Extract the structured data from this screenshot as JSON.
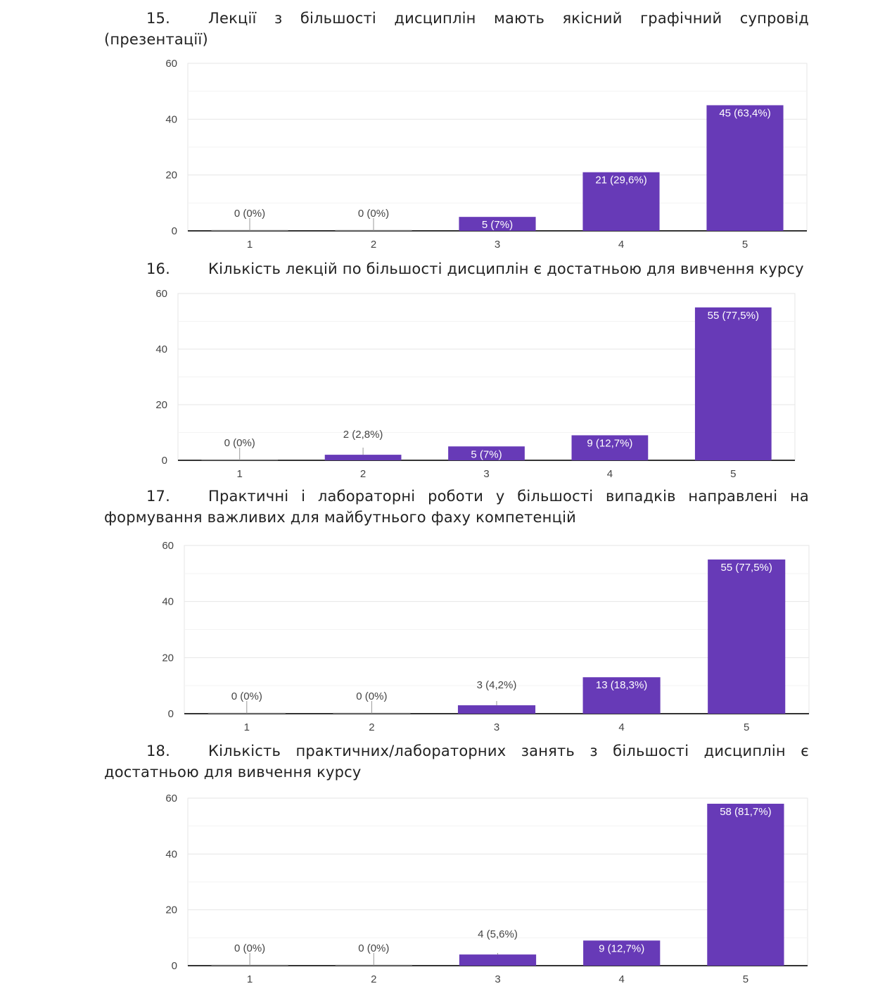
{
  "bar_color": "#673ab7",
  "chart_data": [
    {
      "type": "bar",
      "number": "15.",
      "title": "Лекції з більшості дисциплін мають якісний графічний супровід (презентації)",
      "categories": [
        "1",
        "2",
        "3",
        "4",
        "5"
      ],
      "values": [
        0,
        0,
        5,
        21,
        45
      ],
      "data_labels": [
        "0 (0%)",
        "0 (0%)",
        "5 (7%)",
        "21 (29,6%)",
        "45 (63,4%)"
      ],
      "yticks": [
        "0",
        "20",
        "40",
        "60"
      ],
      "ylim": [
        0,
        60
      ],
      "grid": true
    },
    {
      "type": "bar",
      "number": "16.",
      "title": "Кількість лекцій по більшості дисциплін є достатньою для вивчення курсу",
      "categories": [
        "1",
        "2",
        "3",
        "4",
        "5"
      ],
      "values": [
        0,
        2,
        5,
        9,
        55
      ],
      "data_labels": [
        "0 (0%)",
        "2 (2,8%)",
        "5 (7%)",
        "9 (12,7%)",
        "55 (77,5%)"
      ],
      "yticks": [
        "0",
        "20",
        "40",
        "60"
      ],
      "ylim": [
        0,
        60
      ],
      "grid": true
    },
    {
      "type": "bar",
      "number": "17.",
      "title": "Практичні і лабораторні роботи у більшості випадків направлені на формування важливих для майбутнього фаху компетенцій",
      "categories": [
        "1",
        "2",
        "3",
        "4",
        "5"
      ],
      "values": [
        0,
        0,
        3,
        13,
        55
      ],
      "data_labels": [
        "0 (0%)",
        "0 (0%)",
        "3 (4,2%)",
        "13 (18,3%)",
        "55 (77,5%)"
      ],
      "yticks": [
        "0",
        "20",
        "40",
        "60"
      ],
      "ylim": [
        0,
        60
      ],
      "grid": true
    },
    {
      "type": "bar",
      "number": "18.",
      "title": "Кількість практичних/лабораторних занять з більшості дисциплін є достатньою для вивчення курсу",
      "categories": [
        "1",
        "2",
        "3",
        "4",
        "5"
      ],
      "values": [
        0,
        0,
        4,
        9,
        58
      ],
      "data_labels": [
        "0 (0%)",
        "0 (0%)",
        "4 (5,6%)",
        "9 (12,7%)",
        "58 (81,7%)"
      ],
      "yticks": [
        "0",
        "20",
        "40",
        "60"
      ],
      "ylim": [
        0,
        60
      ],
      "grid": true
    }
  ]
}
